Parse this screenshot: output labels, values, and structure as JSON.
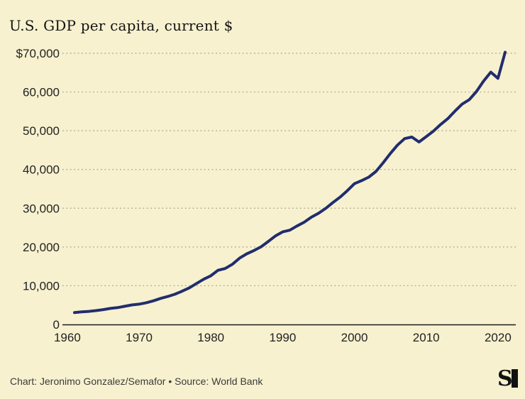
{
  "chart_data": {
    "type": "line",
    "title": "U.S. GDP per capita, current $",
    "xlabel": "",
    "ylabel": "",
    "xlim": [
      1960,
      2021
    ],
    "ylim": [
      0,
      70000
    ],
    "grid": "horizontal-dotted",
    "legend": "none",
    "series": [
      {
        "name": "U.S. GDP per capita (current $)",
        "x": [
          1961,
          1962,
          1963,
          1964,
          1965,
          1966,
          1967,
          1968,
          1969,
          1970,
          1971,
          1972,
          1973,
          1974,
          1975,
          1976,
          1977,
          1978,
          1979,
          1980,
          1981,
          1982,
          1983,
          1984,
          1985,
          1986,
          1987,
          1988,
          1989,
          1990,
          1991,
          1992,
          1993,
          1994,
          1995,
          1996,
          1997,
          1998,
          1999,
          2000,
          2001,
          2002,
          2003,
          2004,
          2005,
          2006,
          2007,
          2008,
          2009,
          2010,
          2011,
          2012,
          2013,
          2014,
          2015,
          2016,
          2017,
          2018,
          2019,
          2020,
          2021
        ],
        "values": [
          3067,
          3244,
          3375,
          3574,
          3828,
          4146,
          4336,
          4696,
          5032,
          5234,
          5609,
          6094,
          6726,
          7226,
          7801,
          8592,
          9453,
          10565,
          11674,
          12575,
          13976,
          14434,
          15544,
          17121,
          18237,
          19071,
          20039,
          21417,
          22857,
          23889,
          24342,
          25419,
          26387,
          27695,
          28691,
          29968,
          31459,
          32854,
          34514,
          36335,
          37133,
          38023,
          39496,
          41713,
          44115,
          46299,
          47976,
          48383,
          47100,
          48467,
          49883,
          51603,
          53107,
          55050,
          56863,
          58021,
          60110,
          62823,
          65120,
          63529,
          70249
        ]
      }
    ],
    "y_ticks": [
      {
        "value": 70000,
        "label": "$70,000"
      },
      {
        "value": 60000,
        "label": "60,000"
      },
      {
        "value": 50000,
        "label": "50,000"
      },
      {
        "value": 40000,
        "label": "40,000"
      },
      {
        "value": 30000,
        "label": "30,000"
      },
      {
        "value": 20000,
        "label": "20,000"
      },
      {
        "value": 10000,
        "label": "10,000"
      },
      {
        "value": 0,
        "label": "0"
      }
    ],
    "x_ticks": [
      {
        "value": 1960,
        "label": "1960"
      },
      {
        "value": 1970,
        "label": "1970"
      },
      {
        "value": 1980,
        "label": "1980"
      },
      {
        "value": 1990,
        "label": "1990"
      },
      {
        "value": 2000,
        "label": "2000"
      },
      {
        "value": 2010,
        "label": "2010"
      },
      {
        "value": 2020,
        "label": "2020"
      }
    ]
  },
  "footer": {
    "credit": "Chart: Jeronimo Gonzalez/Semafor • Source: World Bank",
    "logo": "semafor-logo"
  },
  "colors": {
    "background": "#f7f1cf",
    "line": "#212d6e",
    "gridline": "#a8a38a",
    "axis": "#1c1c1c",
    "tick_text": "#222222",
    "title_text": "#141414",
    "footer_text": "#3a3a3a",
    "logo": "#111111"
  }
}
